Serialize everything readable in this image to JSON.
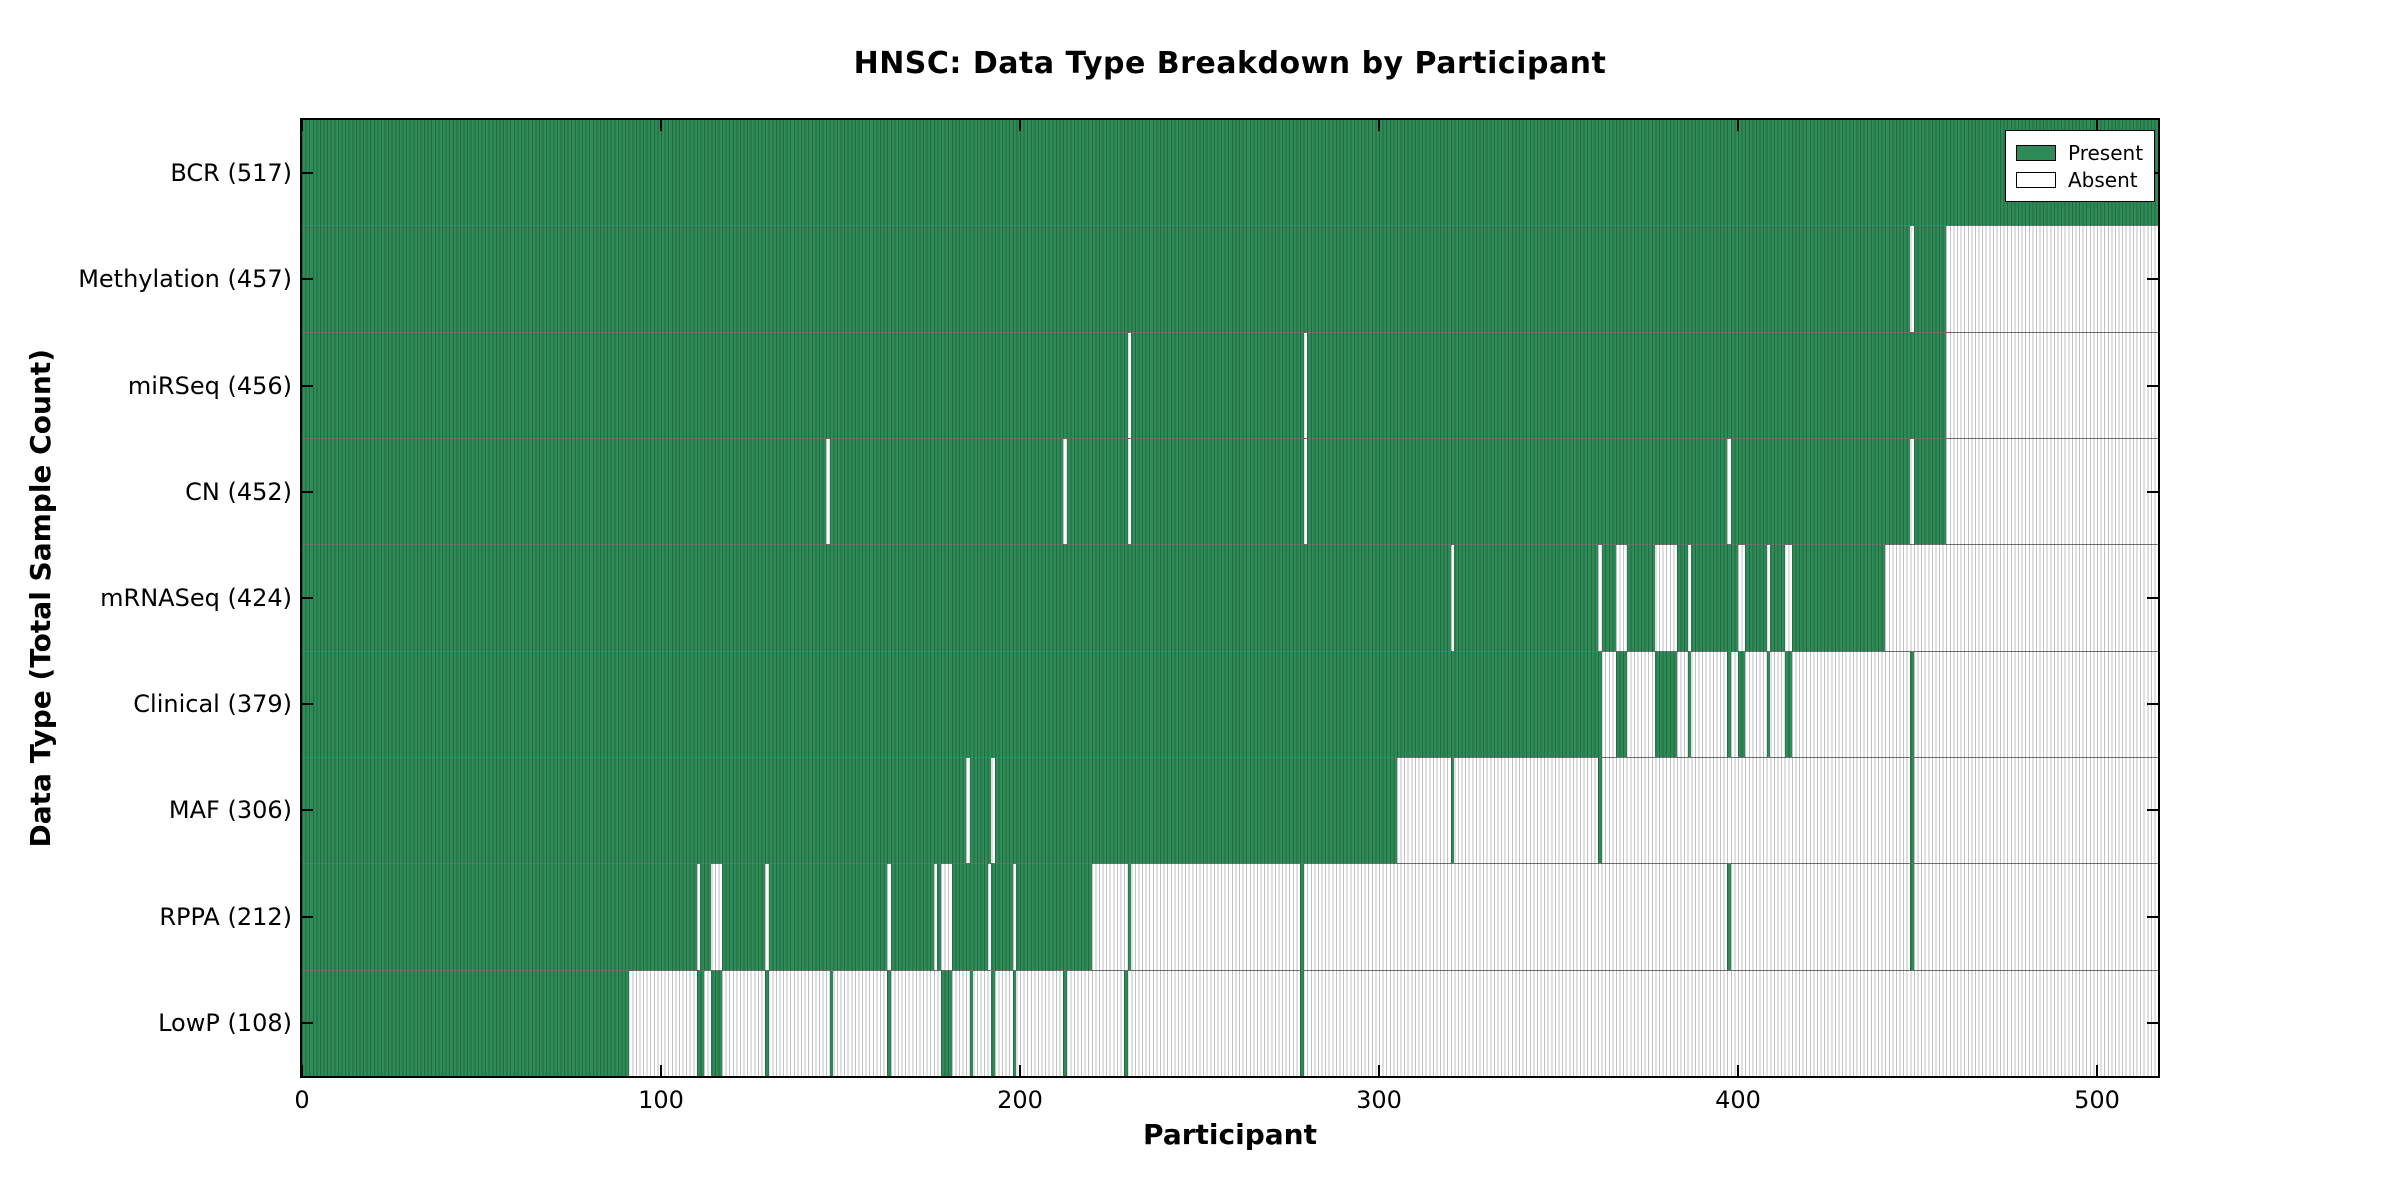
{
  "title": "HNSC: Data Type Breakdown by Participant",
  "chart_data": {
    "type": "heatmap",
    "title": "HNSC: Data Type Breakdown by Participant",
    "xlabel": "Participant",
    "ylabel": "Data Type (Total Sample Count)",
    "x_range": [
      0,
      517
    ],
    "x_ticks": [
      0,
      100,
      200,
      300,
      400,
      500
    ],
    "grid": false,
    "legend_position": "upper right",
    "legend": [
      {
        "label": "Present",
        "color": "#2e8b57"
      },
      {
        "label": "Absent",
        "color": "#ffffff"
      }
    ],
    "cell_edge_color": "rgba(0,0,0,0.24)",
    "rows": [
      {
        "name": "BCR",
        "label": "BCR (517)",
        "total": 517,
        "present_ranges": [
          [
            0,
            517
          ]
        ]
      },
      {
        "name": "Methylation",
        "label": "Methylation (457)",
        "total": 457,
        "present_ranges": [
          [
            0,
            448
          ],
          [
            449,
            458
          ]
        ]
      },
      {
        "name": "miRSeq",
        "label": "miRSeq (456)",
        "total": 456,
        "present_ranges": [
          [
            0,
            230
          ],
          [
            231,
            279
          ],
          [
            280,
            458
          ]
        ]
      },
      {
        "name": "CN",
        "label": "CN (452)",
        "total": 452,
        "present_ranges": [
          [
            0,
            146
          ],
          [
            147,
            212
          ],
          [
            213,
            230
          ],
          [
            231,
            279
          ],
          [
            280,
            397
          ],
          [
            398,
            448
          ],
          [
            449,
            458
          ]
        ]
      },
      {
        "name": "mRNASeq",
        "label": "mRNASeq (424)",
        "total": 424,
        "present_ranges": [
          [
            0,
            320
          ],
          [
            321,
            361
          ],
          [
            362,
            366
          ],
          [
            369,
            377
          ],
          [
            383,
            386
          ],
          [
            387,
            400
          ],
          [
            402,
            408
          ],
          [
            409,
            413
          ],
          [
            415,
            441
          ]
        ]
      },
      {
        "name": "Clinical",
        "label": "Clinical (379)",
        "total": 379,
        "present_ranges": [
          [
            0,
            362
          ],
          [
            366,
            369
          ],
          [
            377,
            383
          ],
          [
            386,
            387
          ],
          [
            397,
            398
          ],
          [
            400,
            402
          ],
          [
            408,
            409
          ],
          [
            413,
            415
          ],
          [
            448,
            449
          ]
        ]
      },
      {
        "name": "MAF",
        "label": "MAF (306)",
        "total": 306,
        "present_ranges": [
          [
            0,
            185
          ],
          [
            186,
            192
          ],
          [
            193,
            305
          ],
          [
            320,
            321
          ],
          [
            361,
            362
          ],
          [
            448,
            449
          ]
        ]
      },
      {
        "name": "RPPA",
        "label": "RPPA (212)",
        "total": 212,
        "present_ranges": [
          [
            0,
            110
          ],
          [
            111,
            114
          ],
          [
            117,
            129
          ],
          [
            130,
            163
          ],
          [
            164,
            176
          ],
          [
            177,
            178
          ],
          [
            181,
            191
          ],
          [
            192,
            198
          ],
          [
            199,
            220
          ],
          [
            230,
            231
          ],
          [
            278,
            279
          ],
          [
            397,
            398
          ],
          [
            448,
            449
          ]
        ]
      },
      {
        "name": "LowP",
        "label": "LowP (108)",
        "total": 108,
        "present_ranges": [
          [
            0,
            91
          ],
          [
            110,
            112
          ],
          [
            114,
            117
          ],
          [
            129,
            130
          ],
          [
            147,
            148
          ],
          [
            163,
            164
          ],
          [
            178,
            181
          ],
          [
            186,
            187
          ],
          [
            192,
            193
          ],
          [
            198,
            199
          ],
          [
            212,
            213
          ],
          [
            229,
            230
          ],
          [
            278,
            279
          ]
        ]
      }
    ]
  }
}
